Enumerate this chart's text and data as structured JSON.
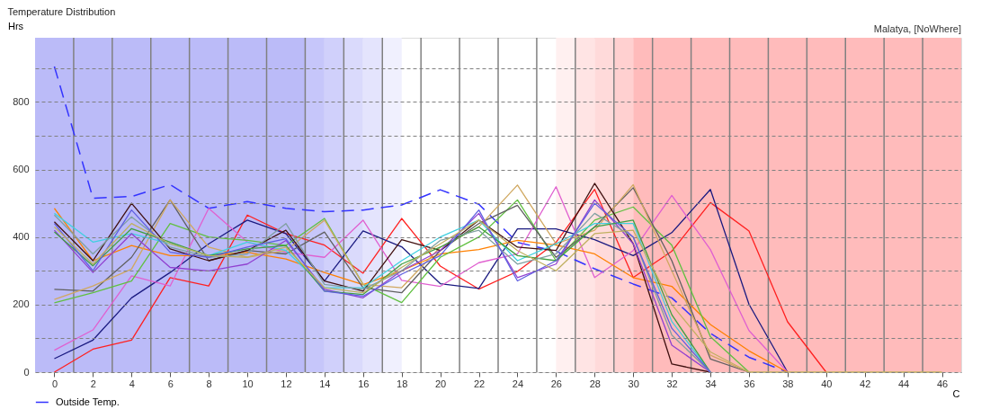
{
  "chart_data": {
    "type": "line",
    "title": "Temperature Distribution",
    "subtitle": "Malatya, [NoWhere]",
    "xlabel": "C",
    "ylabel": "Hrs",
    "x": [
      0,
      2,
      4,
      6,
      8,
      10,
      12,
      14,
      16,
      18,
      20,
      22,
      24,
      26,
      28,
      30,
      32,
      34,
      36,
      38,
      40,
      42,
      44,
      46
    ],
    "xlim": [
      -1,
      47
    ],
    "xticks": [
      0,
      {
        "value": 1,
        "label": null
      },
      2,
      {
        "value": 3,
        "label": null
      },
      4,
      {
        "value": 5,
        "label": null
      },
      6,
      {
        "value": 7,
        "label": null
      },
      8,
      {
        "value": 9,
        "label": null
      },
      10,
      {
        "value": 11,
        "label": null
      },
      12,
      {
        "value": 13,
        "label": null
      },
      14,
      {
        "value": 15,
        "label": null
      },
      16,
      {
        "value": 17,
        "label": null
      },
      18,
      {
        "value": 19,
        "label": null
      },
      20,
      {
        "value": 21,
        "label": null
      },
      22,
      {
        "value": 23,
        "label": null
      },
      24,
      {
        "value": 25,
        "label": null
      },
      26,
      {
        "value": 27,
        "label": null
      },
      28,
      {
        "value": 29,
        "label": null
      },
      30,
      {
        "value": 31,
        "label": null
      },
      32,
      {
        "value": 33,
        "label": null
      },
      34,
      {
        "value": 35,
        "label": null
      },
      36,
      {
        "value": 37,
        "label": null
      },
      38,
      {
        "value": 39,
        "label": null
      },
      40,
      {
        "value": 41,
        "label": null
      },
      42,
      {
        "value": 43,
        "label": null
      },
      44,
      {
        "value": 45,
        "label": null
      },
      46
    ],
    "ylim": [
      0,
      990
    ],
    "yticks": [
      0,
      {
        "value": 100,
        "label": null
      },
      200,
      {
        "value": 300,
        "label": null
      },
      400,
      {
        "value": 500,
        "label": null
      },
      600,
      {
        "value": 700,
        "label": null
      },
      800,
      {
        "value": 900,
        "label": null
      }
    ],
    "grid": true,
    "legend": "bottom left",
    "marker": "none",
    "bands": [
      {
        "axis": "x",
        "from": -1,
        "to": 13,
        "color": "#bbbbf8"
      },
      {
        "axis": "x",
        "from": 13,
        "to": 14,
        "color": "#c6c6fa"
      },
      {
        "axis": "x",
        "from": 14,
        "to": 15,
        "color": "#d0d0fb"
      },
      {
        "axis": "x",
        "from": 15,
        "to": 16,
        "color": "#dadafc"
      },
      {
        "axis": "x",
        "from": 16,
        "to": 17,
        "color": "#e4e4fd"
      },
      {
        "axis": "x",
        "from": 17,
        "to": 18,
        "color": "#f0f0fe"
      },
      {
        "axis": "x",
        "from": 26,
        "to": 27,
        "color": "#fff0f0"
      },
      {
        "axis": "x",
        "from": 27,
        "to": 28,
        "color": "#ffe4e4"
      },
      {
        "axis": "x",
        "from": 28,
        "to": 29,
        "color": "#ffdada"
      },
      {
        "axis": "x",
        "from": 29,
        "to": 30,
        "color": "#ffd0d0"
      },
      {
        "axis": "x",
        "from": 30,
        "to": 47,
        "color": "#ffbbbb"
      }
    ],
    "series": [
      {
        "name": "Outside Temp.",
        "color": "#3333ff",
        "line_style": "dashed",
        "values": [
          905,
          515,
          520,
          555,
          485,
          505,
          485,
          475,
          480,
          495,
          540,
          497,
          384,
          358,
          306,
          261,
          220,
          115,
          44,
          0,
          null,
          null,
          null,
          null
        ]
      },
      {
        "color": "#ff2020",
        "values": [
          0,
          68,
          95,
          280,
          255,
          465,
          410,
          376,
          293,
          455,
          314,
          246,
          298,
          384,
          541,
          280,
          358,
          502,
          418,
          149,
          0,
          null,
          null,
          null
        ]
      },
      {
        "color": "#1a1a80",
        "values": [
          40,
          95,
          220,
          295,
          380,
          450,
          410,
          270,
          418,
          371,
          262,
          248,
          424,
          424,
          392,
          345,
          413,
          541,
          201,
          0,
          null,
          null,
          null,
          null
        ]
      },
      {
        "color": "#e060d0",
        "values": [
          65,
          125,
          285,
          255,
          485,
          385,
          355,
          340,
          450,
          272,
          254,
          324,
          350,
          549,
          280,
          360,
          523,
          363,
          123,
          0,
          null,
          null,
          null,
          null
        ]
      },
      {
        "color": "#ff8000",
        "values": [
          485,
          330,
          375,
          345,
          345,
          355,
          335,
          295,
          259,
          300,
          350,
          363,
          390,
          376,
          350,
          280,
          254,
          141,
          63,
          0,
          null,
          null,
          null,
          null
        ]
      },
      {
        "color": "#60c040",
        "values": [
          205,
          235,
          270,
          440,
          400,
          390,
          375,
          455,
          260,
          206,
          340,
          400,
          510,
          330,
          450,
          489,
          376,
          105,
          0,
          null,
          null,
          null,
          null,
          null
        ]
      },
      {
        "color": "#606060",
        "values": [
          245,
          240,
          340,
          510,
          330,
          360,
          350,
          415,
          250,
          235,
          360,
          440,
          494,
          340,
          430,
          546,
          330,
          39,
          0,
          null,
          null,
          null,
          null,
          null
        ]
      },
      {
        "color": "#d0a860",
        "values": [
          215,
          255,
          305,
          510,
          370,
          340,
          360,
          450,
          260,
          250,
          370,
          430,
          554,
          380,
          420,
          555,
          300,
          50,
          0,
          null,
          null,
          null,
          null,
          null
        ]
      },
      {
        "color": "#401010",
        "values": [
          445,
          330,
          500,
          365,
          330,
          360,
          420,
          270,
          240,
          392,
          360,
          450,
          370,
          360,
          559,
          380,
          24,
          0,
          null,
          null,
          null,
          null,
          null,
          null
        ]
      },
      {
        "color": "#40d0e0",
        "values": [
          470,
          385,
          410,
          380,
          345,
          385,
          360,
          250,
          250,
          330,
          400,
          450,
          330,
          380,
          440,
          440,
          150,
          0,
          null,
          null,
          null,
          null,
          null,
          null
        ]
      },
      {
        "color": "#9040d0",
        "values": [
          420,
          295,
          410,
          310,
          300,
          320,
          390,
          245,
          220,
          300,
          360,
          470,
          280,
          320,
          510,
          380,
          80,
          0,
          null,
          null,
          null,
          null,
          null,
          null
        ]
      },
      {
        "color": "#40a040",
        "values": [
          415,
          315,
          425,
          385,
          345,
          365,
          375,
          240,
          230,
          320,
          370,
          430,
          345,
          330,
          430,
          450,
          170,
          0,
          null,
          null,
          null,
          null,
          null,
          null
        ]
      },
      {
        "color": "#80a0a0",
        "values": [
          465,
          350,
          460,
          370,
          340,
          350,
          440,
          260,
          245,
          300,
          390,
          420,
          320,
          350,
          470,
          400,
          110,
          0,
          null,
          null,
          null,
          null,
          null,
          null
        ]
      },
      {
        "color": "#6060e0",
        "values": [
          440,
          300,
          480,
          355,
          340,
          370,
          395,
          240,
          225,
          290,
          345,
          480,
          270,
          330,
          500,
          400,
          130,
          0,
          null,
          null,
          null,
          null,
          null,
          null
        ]
      },
      {
        "color": "#c0b060",
        "values": [
          430,
          320,
          440,
          380,
          345,
          340,
          370,
          250,
          235,
          310,
          380,
          450,
          360,
          300,
          410,
          420,
          200,
          60,
          0,
          0,
          0,
          0,
          0,
          0
        ]
      }
    ]
  }
}
